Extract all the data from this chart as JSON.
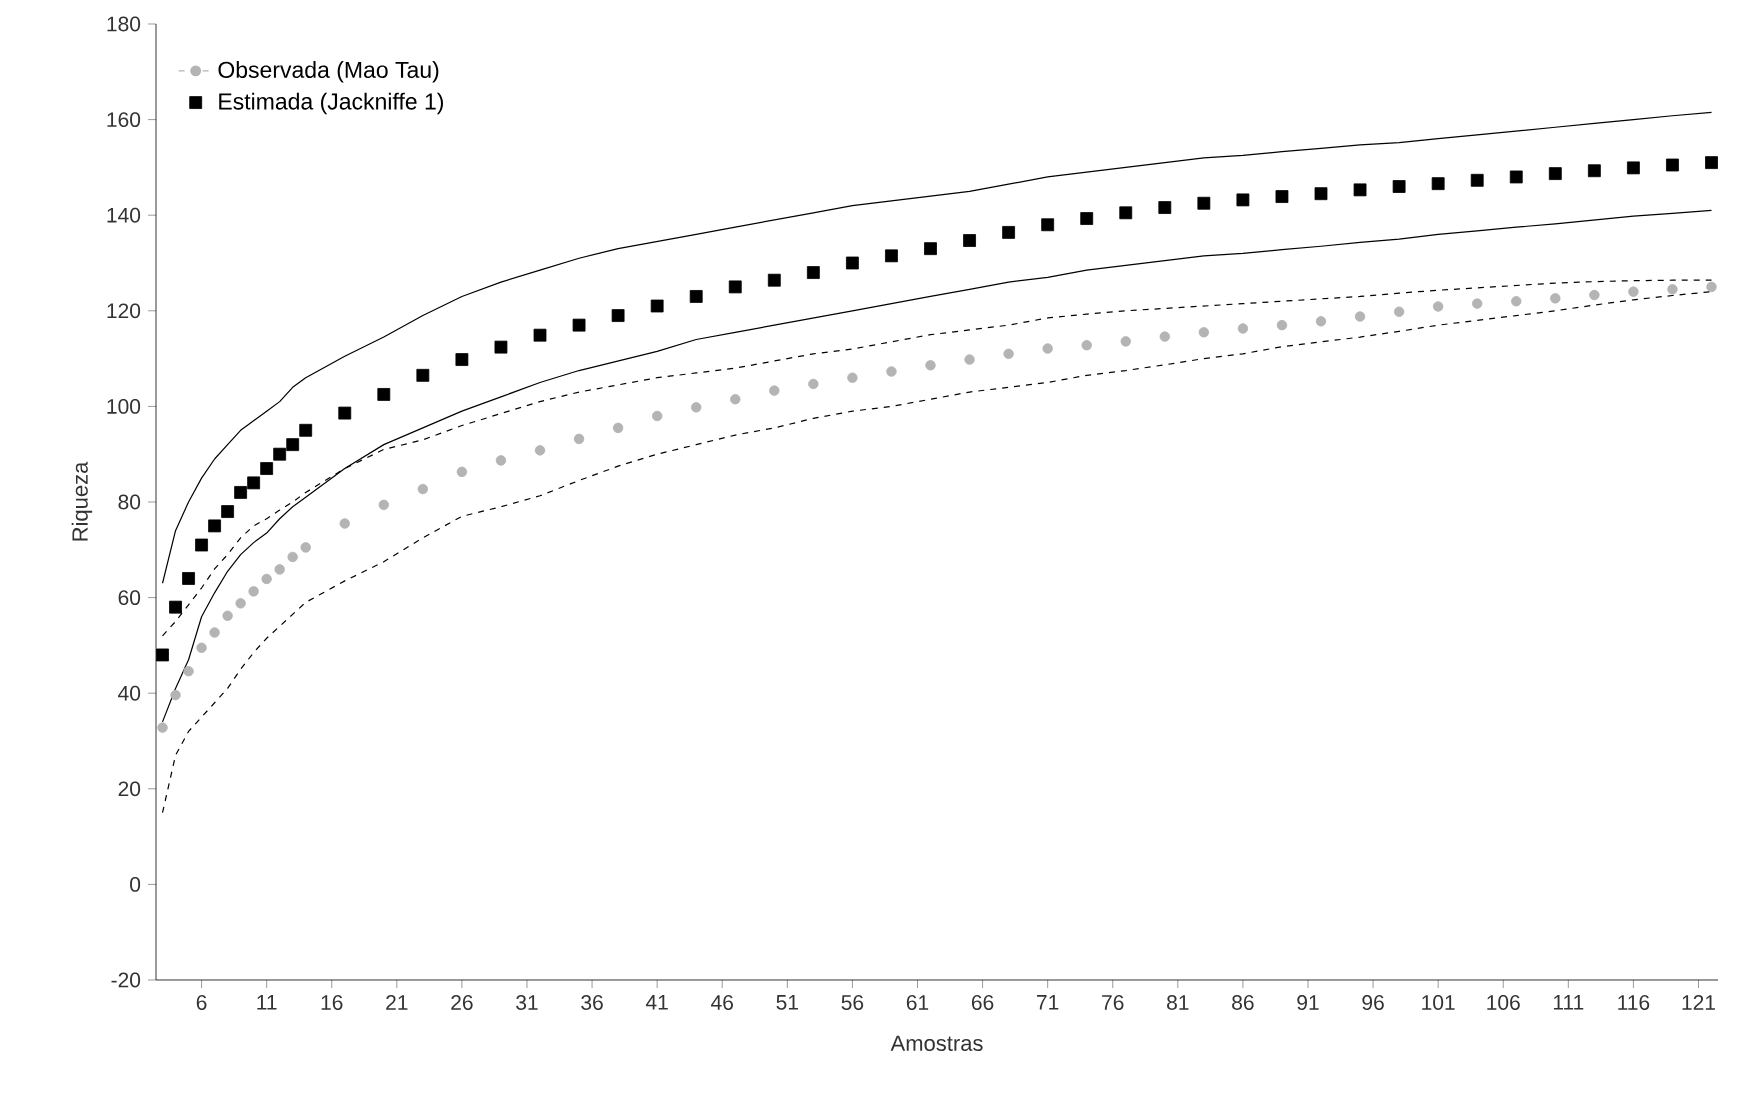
{
  "chart_data": {
    "type": "scatter",
    "xlabel": "Amostras",
    "ylabel": "Riqueza",
    "xlim": [
      2.5,
      122.5
    ],
    "ylim": [
      -20,
      180
    ],
    "xticks": [
      6,
      11,
      16,
      21,
      26,
      31,
      36,
      41,
      46,
      51,
      56,
      61,
      66,
      71,
      76,
      81,
      86,
      91,
      96,
      101,
      106,
      111,
      116,
      121
    ],
    "yticks": [
      -20,
      0,
      20,
      40,
      60,
      80,
      100,
      120,
      140,
      160,
      180
    ],
    "grid": false,
    "legend": "top left",
    "x": [
      3,
      4,
      5,
      6,
      7,
      8,
      9,
      10,
      11,
      12,
      13,
      14,
      17,
      20,
      23,
      26,
      29,
      32,
      35,
      38,
      41,
      44,
      47,
      50,
      53,
      56,
      59,
      62,
      65,
      68,
      71,
      74,
      77,
      80,
      83,
      86,
      89,
      92,
      95,
      98,
      101,
      104,
      107,
      110,
      113,
      116,
      119,
      122
    ],
    "series": [
      {
        "name": "Observada (Mao Tau)",
        "color": "#b4b4b4",
        "marker": "circle",
        "line_style": "dashed",
        "values": [
          32.8,
          39.6,
          44.6,
          49.5,
          52.7,
          56.2,
          58.8,
          61.3,
          63.9,
          65.9,
          68.5,
          70.5,
          75.5,
          79.4,
          82.7,
          86.3,
          88.7,
          90.8,
          93.2,
          95.5,
          98,
          99.8,
          101.5,
          103.3,
          104.7,
          106,
          107.3,
          108.6,
          109.8,
          111,
          112.1,
          112.8,
          113.6,
          114.6,
          115.5,
          116.3,
          117,
          117.8,
          118.8,
          119.8,
          120.9,
          121.5,
          122,
          122.6,
          123.3,
          124,
          124.5,
          125
        ]
      },
      {
        "name": "Estimada (Jackniffe 1)",
        "color": "#000000",
        "marker": "square",
        "values": [
          48,
          58,
          64,
          71,
          75,
          78,
          82,
          84,
          87,
          90,
          92,
          95,
          98.6,
          102.5,
          106.5,
          109.8,
          112.4,
          114.9,
          117,
          119,
          121,
          123,
          125,
          126.4,
          128,
          130,
          131.5,
          133,
          134.7,
          136.4,
          138,
          139.3,
          140.5,
          141.6,
          142.5,
          143.2,
          143.9,
          144.5,
          145.3,
          146,
          146.6,
          147.3,
          148,
          148.7,
          149.3,
          149.9,
          150.5,
          151
        ]
      },
      {
        "type": "line",
        "color": "#000000",
        "line_style": "dashed",
        "marker": "none",
        "values": [
          15,
          27,
          32,
          35,
          38,
          41,
          45,
          48.5,
          51.5,
          54,
          56.5,
          59,
          63.5,
          67.5,
          72.5,
          77,
          79,
          81.3,
          84.5,
          87.5,
          90,
          92,
          94,
          95.5,
          97.5,
          99,
          100,
          101.5,
          103,
          104,
          105,
          106.5,
          107.5,
          108.7,
          110,
          111,
          112.5,
          113.5,
          114.5,
          115.7,
          117,
          118,
          119,
          120,
          121.2,
          122.3,
          123.2,
          124
        ]
      },
      {
        "type": "line",
        "color": "#000000",
        "line_style": "dashed",
        "marker": "none",
        "values": [
          52,
          55,
          58.5,
          62,
          66,
          69,
          72.5,
          75,
          76.5,
          78.3,
          80,
          82,
          87,
          91,
          93,
          96,
          98.5,
          101,
          103,
          104.5,
          106,
          107,
          108,
          109.5,
          111,
          112,
          113.5,
          115,
          116,
          117,
          118.5,
          119.3,
          120,
          120.5,
          121,
          121.5,
          122,
          122.5,
          123,
          123.7,
          124.3,
          124.8,
          125.3,
          125.8,
          126.1,
          126.3,
          126.4,
          126.4
        ]
      },
      {
        "type": "line",
        "color": "#000000",
        "line_style": "solid",
        "marker": "none",
        "values": [
          34,
          41,
          47,
          56,
          61,
          65.5,
          69,
          71.5,
          73.5,
          76.5,
          79,
          81,
          87,
          92,
          95.5,
          99,
          102,
          105,
          107.5,
          109.5,
          111.5,
          114,
          115.5,
          117,
          118.5,
          120,
          121.5,
          123,
          124.5,
          126,
          127,
          128.5,
          129.5,
          130.5,
          131.5,
          132,
          132.8,
          133.5,
          134.3,
          135,
          136,
          136.7,
          137.5,
          138.2,
          139,
          139.8,
          140.4,
          141
        ]
      },
      {
        "type": "line",
        "color": "#000000",
        "line_style": "solid",
        "marker": "none",
        "values": [
          63,
          74,
          80,
          85,
          89,
          92,
          95,
          97,
          99,
          101,
          104,
          106,
          110.5,
          114.5,
          119,
          123,
          126,
          128.5,
          131,
          133,
          134.5,
          136,
          137.5,
          139,
          140.5,
          142,
          143,
          144,
          145,
          146.5,
          148,
          149,
          150,
          151,
          152,
          152.5,
          153.3,
          154,
          154.7,
          155.2,
          156,
          156.8,
          157.6,
          158.4,
          159.2,
          160,
          160.8,
          161.5
        ]
      }
    ]
  }
}
